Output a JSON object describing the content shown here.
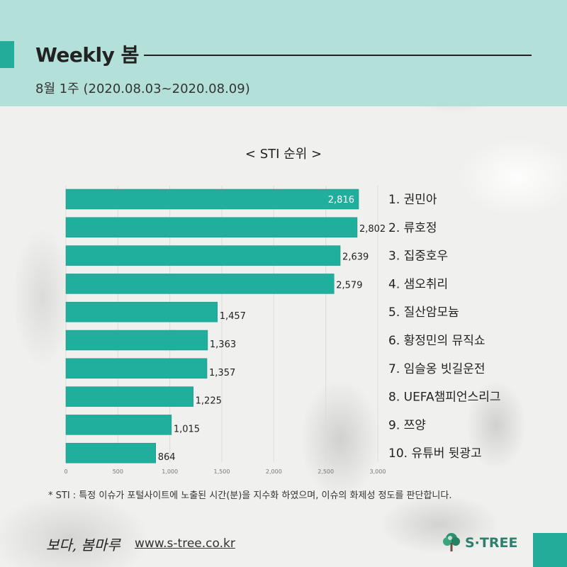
{
  "header": {
    "title": "Weekly 봄",
    "subtitle": "8월 1주 (2020.08.03~2020.08.09)",
    "accent_color": "#22ac9a",
    "band_color": "#b3e0d8"
  },
  "chart_heading": "< STI 순위 >",
  "chart_data": {
    "type": "bar",
    "orientation": "horizontal",
    "categories": [
      "1. 권민아",
      "2. 류호정",
      "3. 집중호우",
      "4. 샘오취리",
      "5. 질산암모늄",
      "6. 황정민의 뮤직쇼",
      "7. 임슬옹 빗길운전",
      "8. UEFA챔피언스리그",
      "9. 쯔양",
      "10. 유튜버 뒷광고"
    ],
    "values": [
      2816,
      2802,
      2639,
      2579,
      1457,
      1363,
      1357,
      1225,
      1015,
      864
    ],
    "value_labels": [
      "2,816",
      "2,802",
      "2,639",
      "2,579",
      "1,457",
      "1,363",
      "1,357",
      "1,225",
      "1,015",
      "864"
    ],
    "xlim": [
      0,
      3000
    ],
    "xticks": [
      0,
      500,
      1000,
      1500,
      2000,
      2500,
      3000
    ],
    "xtick_labels": [
      "0",
      "500",
      "1,000",
      "1,500",
      "2,000",
      "2,500",
      "3,000"
    ],
    "bar_color": "#20ae9d",
    "grid": true,
    "category_labels_position": "right"
  },
  "footnote": "* STI : 특정 이슈가 포털사이트에 노출된 시간(분)을 지수화 하였으며, 이슈의 화제성 정도를 판단합니다.",
  "footer": {
    "logo_text": "보다, 봄마루",
    "url": "www.s-tree.co.kr",
    "brand": "S·TREE",
    "brand_icon": "tree-icon"
  }
}
